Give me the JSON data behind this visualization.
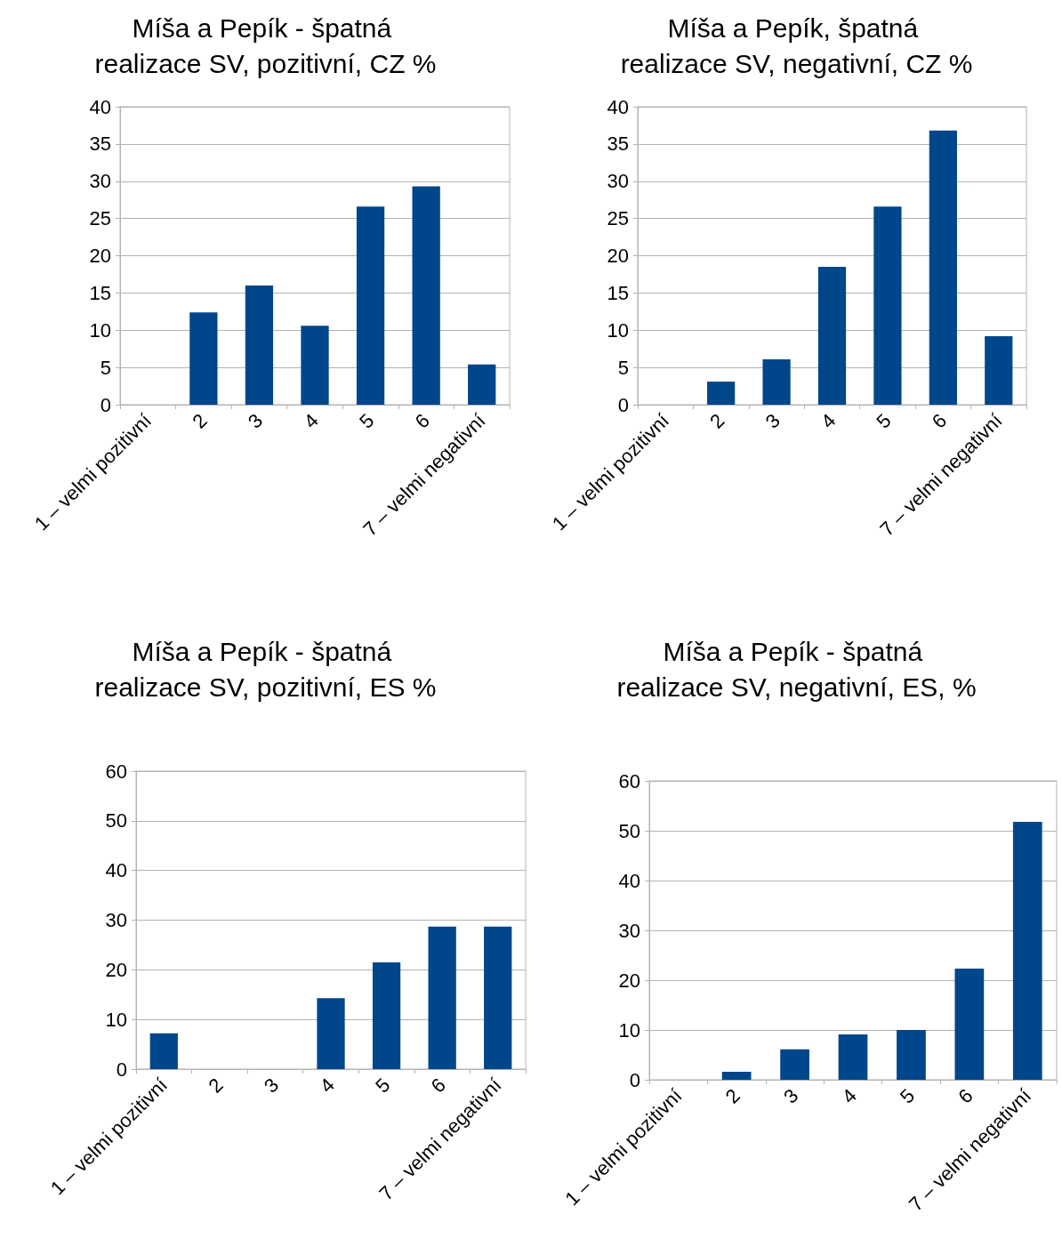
{
  "chart_data": [
    {
      "type": "bar",
      "title": "Míša a Pepík - špatná realizace SV, pozitivní, CZ %",
      "categories": [
        "1 – velmi pozitivní",
        "2",
        "3",
        "4",
        "5",
        "6",
        "7 – velmi negativní"
      ],
      "values": [
        0,
        12.4,
        16.0,
        10.6,
        26.6,
        29.3,
        5.4
      ],
      "color": "#00468b",
      "ylim": [
        0,
        40
      ],
      "yticks": [
        0,
        5,
        10,
        15,
        20,
        25,
        30,
        35,
        40
      ],
      "grid": "y"
    },
    {
      "type": "bar",
      "title": "Míša a Pepík, špatná realizace SV, negativní, CZ %",
      "categories": [
        "1 – velmi pozitivní",
        "2",
        "3",
        "4",
        "5",
        "6",
        "7 – velmi negativní"
      ],
      "values": [
        0,
        3.1,
        6.1,
        18.5,
        26.6,
        36.8,
        9.2
      ],
      "color": "#00468b",
      "ylim": [
        0,
        40
      ],
      "yticks": [
        0,
        5,
        10,
        15,
        20,
        25,
        30,
        35,
        40
      ],
      "grid": "y"
    },
    {
      "type": "bar",
      "title": "Míša a Pepík - špatná realizace SV, pozitivní, ES %",
      "categories": [
        "1 – velmi pozitivní",
        "2",
        "3",
        "4",
        "5",
        "6",
        "7 – velmi negativní"
      ],
      "values": [
        7.2,
        0,
        0,
        14.3,
        21.5,
        28.7,
        28.7
      ],
      "color": "#00468b",
      "ylim": [
        0,
        60
      ],
      "yticks": [
        0,
        10,
        20,
        30,
        40,
        50,
        60
      ],
      "grid": "y"
    },
    {
      "type": "bar",
      "title": "Míša a Pepík - špatná realizace SV, negativní, ES, %",
      "categories": [
        "1 – velmi pozitivní",
        "2",
        "3",
        "4",
        "5",
        "6",
        "7 – velmi negativní"
      ],
      "values": [
        0,
        1.6,
        6.1,
        9.1,
        10.0,
        22.3,
        51.8
      ],
      "color": "#00468b",
      "ylim": [
        0,
        60
      ],
      "yticks": [
        0,
        10,
        20,
        30,
        40,
        50,
        60
      ],
      "grid": "y"
    }
  ]
}
